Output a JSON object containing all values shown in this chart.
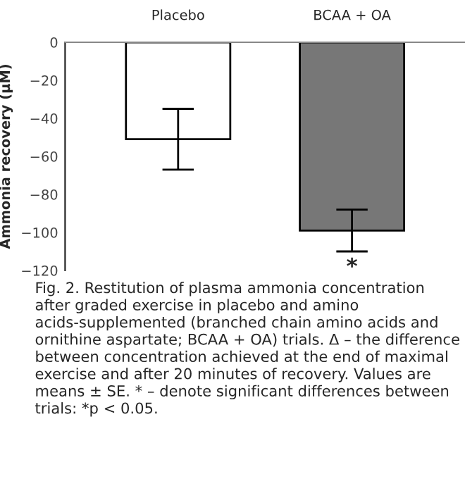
{
  "chart_data": {
    "type": "bar",
    "categories": [
      "Placebo",
      "BCAA + OA"
    ],
    "values": [
      -51,
      -99
    ],
    "errors": [
      16,
      11
    ],
    "colors": [
      "#ffffff",
      "#777777"
    ],
    "ylabel": "Ammonia recovery (µM)",
    "ylim": [
      -120,
      0
    ],
    "yticks": [
      0,
      {
        "value": -20,
        "label": "−20"
      },
      {
        "value": -40,
        "label": "−40"
      },
      {
        "value": -60,
        "label": "−60"
      },
      {
        "value": -80,
        "label": "−80"
      },
      {
        "value": -100,
        "label": "−100"
      },
      {
        "value": -120,
        "label": "−120"
      }
    ],
    "grid": false,
    "legend": false,
    "annotations": [
      {
        "text": "*",
        "x": "BCAA + OA",
        "y": -113
      },
      "Fig. 2. Restitution of plasma ammonia concentration after graded exercise in placebo and amino acids-supplemented (branched chain amino acids and ornithine aspartate; BCAA + OA) trials. Δ – the difference between concentration achieved at the end of maximal exercise and after 20 minutes of recovery. Values are means ± SE. * – denote significant differences between trials: *p < 0.05."
    ]
  }
}
